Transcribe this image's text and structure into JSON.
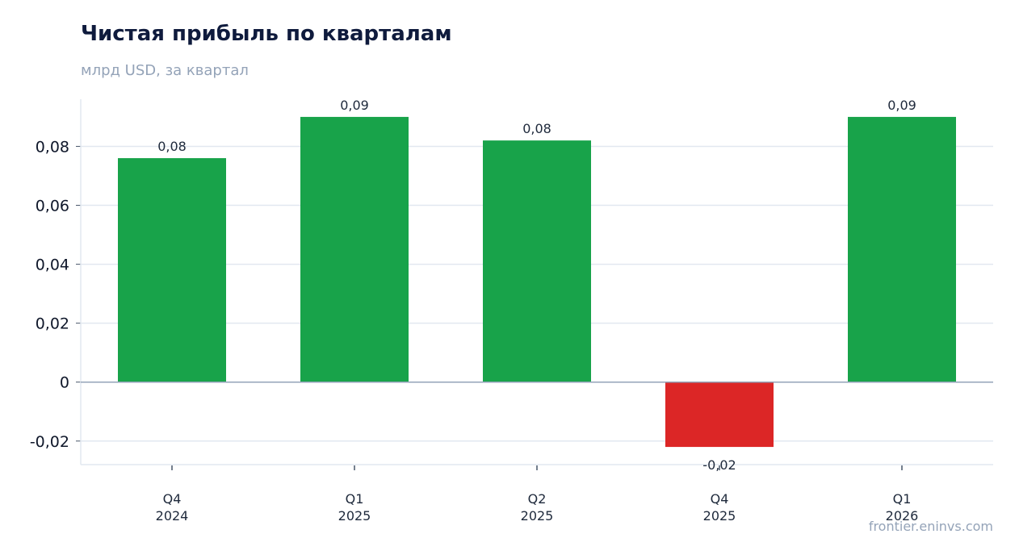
{
  "chart_data": {
    "type": "bar",
    "title": "Чистая прибыль по кварталам",
    "subtitle": "млрд USD, за квартал",
    "categories": [
      [
        "Q4",
        "2024"
      ],
      [
        "Q1",
        "2025"
      ],
      [
        "Q2",
        "2025"
      ],
      [
        "Q4",
        "2025"
      ],
      [
        "Q1",
        "2026"
      ]
    ],
    "values": [
      0.076,
      0.09,
      0.082,
      -0.022,
      0.09
    ],
    "value_labels": [
      "0,08",
      "0,09",
      "0,08",
      "-0,02",
      "0,09"
    ],
    "yticks": [
      -0.02,
      0,
      0.02,
      0.04,
      0.06,
      0.08
    ],
    "ytick_labels": [
      "-0,02",
      "0",
      "0,02",
      "0,04",
      "0,06",
      "0,08"
    ],
    "ylim": [
      -0.028,
      0.096
    ],
    "grid": true,
    "colors": {
      "positive": "#18a34a",
      "negative": "#dc2626",
      "grid": "#e2e8f0",
      "zero_line": "#94a3b8",
      "axis": "#e2e8f0"
    }
  },
  "footer": {
    "source": "frontier.eninvs.com"
  }
}
